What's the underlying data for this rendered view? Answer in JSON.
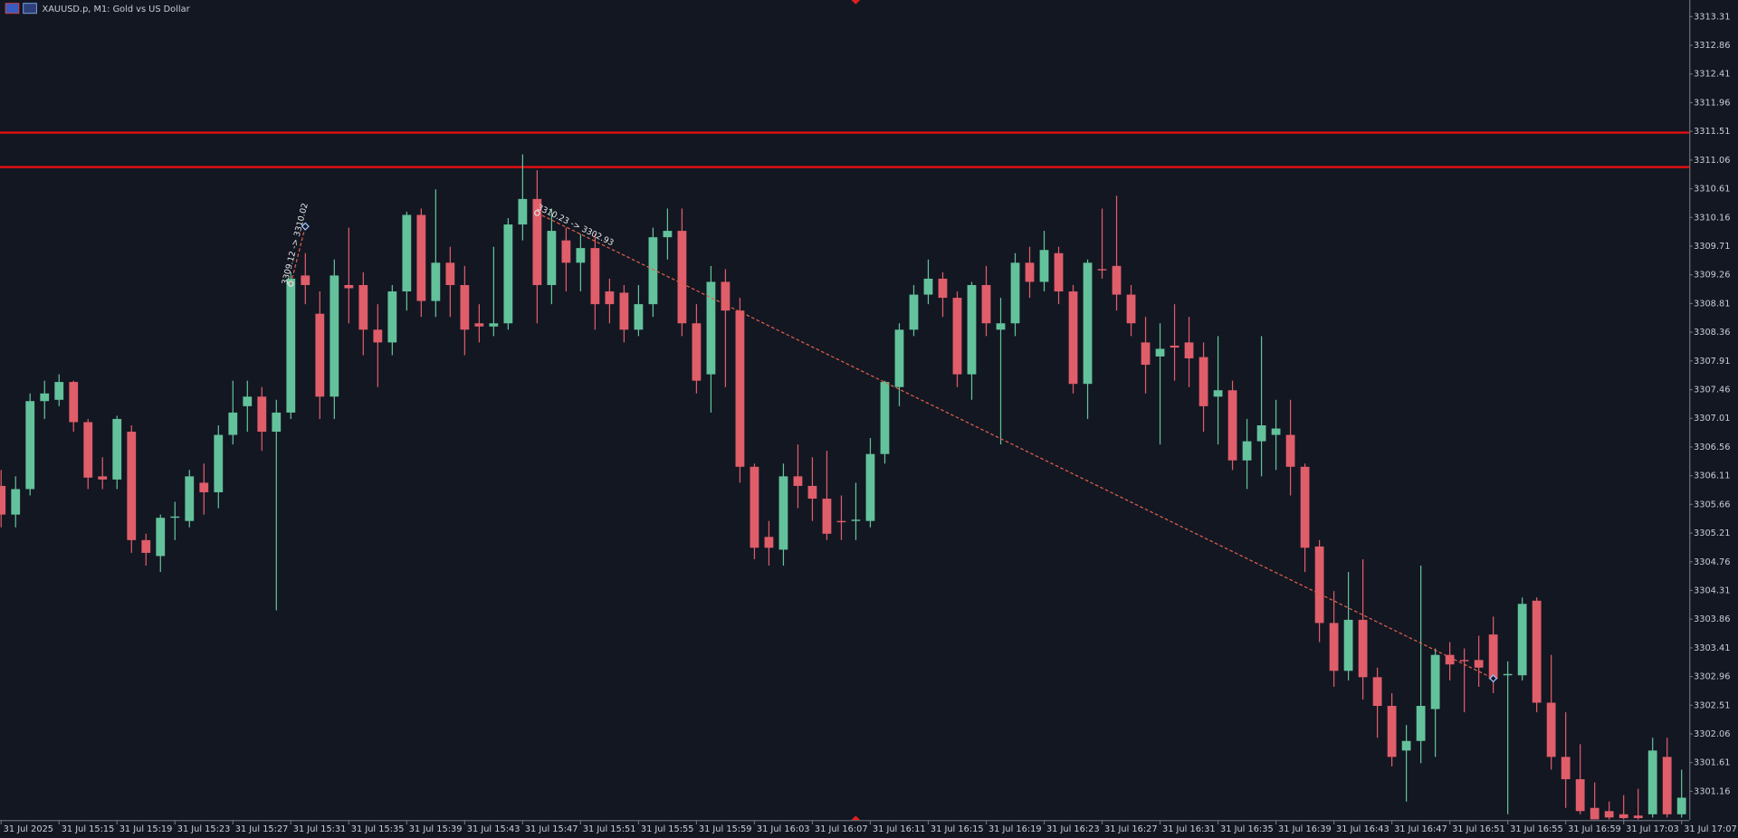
{
  "chart_data": {
    "type": "candlestick",
    "title": "XAUUSD.p, M1:  Gold vs US Dollar",
    "up_color": "#63c29b",
    "down_color": "#e05d6a",
    "level_color": "#e01010",
    "trade_color": "#e0604a",
    "ylim": [
      3300.71,
      3313.57
    ],
    "yticks": [
      3313.31,
      3312.86,
      3312.41,
      3311.96,
      3311.51,
      3311.06,
      3310.61,
      3310.16,
      3309.71,
      3309.26,
      3308.81,
      3308.36,
      3307.91,
      3307.46,
      3307.01,
      3306.56,
      3306.11,
      3305.66,
      3305.21,
      3304.76,
      3304.31,
      3303.86,
      3303.41,
      3302.96,
      3302.51,
      3302.06,
      3301.61,
      3301.16
    ],
    "categories": [
      "31 Jul 2025",
      null,
      null,
      null,
      "31 Jul 15:15",
      null,
      null,
      null,
      "31 Jul 15:19",
      null,
      null,
      null,
      "31 Jul 15:23",
      null,
      null,
      null,
      "31 Jul 15:27",
      null,
      null,
      null,
      "31 Jul 15:31",
      null,
      null,
      null,
      "31 Jul 15:35",
      null,
      null,
      null,
      "31 Jul 15:39",
      null,
      null,
      null,
      "31 Jul 15:43",
      null,
      null,
      null,
      "31 Jul 15:47",
      null,
      null,
      null,
      "31 Jul 15:51",
      null,
      null,
      null,
      "31 Jul 15:55",
      null,
      null,
      null,
      "31 Jul 15:59",
      null,
      null,
      null,
      "31 Jul 16:03",
      null,
      null,
      null,
      "31 Jul 16:07",
      null,
      null,
      null,
      "31 Jul 16:11",
      null,
      null,
      null,
      "31 Jul 16:15",
      null,
      null,
      null,
      "31 Jul 16:19",
      null,
      null,
      null,
      "31 Jul 16:23",
      null,
      null,
      null,
      "31 Jul 16:27",
      null,
      null,
      null,
      "31 Jul 16:31",
      null,
      null,
      null,
      "31 Jul 16:35",
      null,
      null,
      null,
      "31 Jul 16:39",
      null,
      null,
      null,
      "31 Jul 16:43",
      null,
      null,
      null,
      "31 Jul 16:47",
      null,
      null,
      null,
      "31 Jul 16:51",
      null,
      null,
      null,
      "31 Jul 16:55",
      null,
      null,
      null,
      "31 Jul 16:59",
      null,
      null,
      null,
      "31 Jul 17:03",
      null,
      null,
      null,
      "31 Jul 17:07"
    ],
    "open": [
      3305.95,
      3305.5,
      3305.9,
      3307.28,
      3307.3,
      3307.58,
      3306.95,
      3306.1,
      3306.05,
      3306.8,
      3305.1,
      3304.85,
      3305.45,
      3305.4,
      3306.0,
      3305.85,
      3306.75,
      3307.2,
      3307.35,
      3306.8,
      3307.1,
      3309.25,
      3308.65,
      3307.35,
      3309.1,
      3309.1,
      3308.4,
      3308.2,
      3309.0,
      3310.2,
      3308.85,
      3309.45,
      3309.1,
      3308.5,
      3308.45,
      3308.5,
      3310.05,
      3310.45,
      3309.1,
      3309.8,
      3309.45,
      3309.68,
      3309.0,
      3308.98,
      3308.4,
      3308.8,
      3309.85,
      3309.95,
      3308.5,
      3307.7,
      3309.15,
      3308.7,
      3306.25,
      3305.15,
      3304.95,
      3306.1,
      3305.95,
      3305.75,
      3305.4,
      3305.4,
      3305.4,
      3306.45,
      3307.5,
      3308.4,
      3308.95,
      3309.2,
      3308.9,
      3307.7,
      3309.1,
      3308.4,
      3308.5,
      3309.45,
      3309.15,
      3309.6,
      3309.0,
      3307.55,
      3309.35,
      3309.4,
      3308.95,
      3308.2,
      3307.98,
      3308.15,
      3308.2,
      3307.97,
      3307.35,
      3307.45,
      3306.35,
      3306.65,
      3306.75,
      3306.75,
      3306.25,
      3305.0,
      3303.8,
      3303.05,
      3303.85,
      3302.95,
      3302.5,
      3301.8,
      3301.95,
      3302.45,
      3303.3,
      3303.22,
      3303.22,
      3303.62,
      3302.98,
      3302.98,
      3304.15,
      3302.55,
      3301.7,
      3301.35,
      3300.9,
      3300.85,
      3300.8,
      3300.78,
      3300.8,
      3301.7,
      3300.8
    ],
    "high": [
      3306.2,
      3306.1,
      3307.4,
      3307.6,
      3307.7,
      3307.6,
      3307.0,
      3306.4,
      3307.05,
      3306.9,
      3305.2,
      3305.5,
      3305.7,
      3306.2,
      3306.3,
      3306.9,
      3307.6,
      3307.6,
      3307.5,
      3307.3,
      3309.3,
      3309.6,
      3309.0,
      3309.5,
      3310.0,
      3309.3,
      3308.8,
      3309.1,
      3310.25,
      3310.3,
      3310.6,
      3309.7,
      3309.4,
      3308.8,
      3309.7,
      3310.15,
      3311.15,
      3310.9,
      3310.3,
      3310.0,
      3309.9,
      3309.9,
      3309.2,
      3309.1,
      3309.1,
      3310.0,
      3310.3,
      3310.3,
      3308.8,
      3309.4,
      3309.35,
      3308.9,
      3306.3,
      3305.4,
      3306.3,
      3306.6,
      3306.4,
      3306.5,
      3305.8,
      3306.0,
      3306.7,
      3307.6,
      3308.5,
      3309.1,
      3309.5,
      3309.3,
      3309.0,
      3309.15,
      3309.4,
      3308.9,
      3309.6,
      3309.7,
      3309.95,
      3309.7,
      3309.1,
      3309.5,
      3310.3,
      3310.5,
      3309.1,
      3308.6,
      3308.5,
      3308.8,
      3308.6,
      3308.2,
      3308.3,
      3307.6,
      3307.0,
      3308.3,
      3307.3,
      3307.3,
      3306.3,
      3305.1,
      3304.3,
      3304.6,
      3304.8,
      3303.1,
      3302.7,
      3302.2,
      3304.7,
      3303.4,
      3303.5,
      3303.4,
      3303.6,
      3303.9,
      3303.2,
      3304.2,
      3304.2,
      3303.3,
      3302.4,
      3301.9,
      3301.3,
      3301.0,
      3301.1,
      3301.2,
      3302.0,
      3302.0,
      3301.5
    ],
    "low": [
      3305.3,
      3305.3,
      3305.8,
      3307.0,
      3307.2,
      3306.8,
      3305.9,
      3305.9,
      3305.9,
      3304.9,
      3304.7,
      3304.6,
      3305.1,
      3305.3,
      3305.5,
      3305.6,
      3306.6,
      3306.8,
      3306.5,
      3304.0,
      3307.0,
      3308.8,
      3307.0,
      3307.0,
      3308.5,
      3308.0,
      3307.5,
      3308.0,
      3308.7,
      3308.6,
      3308.6,
      3308.6,
      3308.0,
      3308.2,
      3308.3,
      3308.4,
      3309.8,
      3308.5,
      3308.8,
      3309.0,
      3309.0,
      3308.4,
      3308.5,
      3308.2,
      3308.3,
      3308.6,
      3309.5,
      3308.3,
      3307.4,
      3307.1,
      3307.5,
      3306.0,
      3304.8,
      3304.7,
      3304.7,
      3305.6,
      3305.4,
      3305.1,
      3305.1,
      3305.1,
      3305.3,
      3306.3,
      3307.2,
      3308.3,
      3308.8,
      3308.6,
      3307.5,
      3307.3,
      3308.3,
      3306.6,
      3308.3,
      3308.9,
      3309.0,
      3308.8,
      3307.4,
      3307.0,
      3309.2,
      3308.7,
      3308.3,
      3307.4,
      3306.6,
      3307.6,
      3307.5,
      3306.8,
      3306.6,
      3306.2,
      3305.9,
      3306.1,
      3306.2,
      3305.8,
      3304.6,
      3303.5,
      3302.8,
      3302.9,
      3302.6,
      3302.0,
      3301.55,
      3301.0,
      3301.6,
      3301.7,
      3302.9,
      3302.4,
      3302.8,
      3302.7,
      3300.8,
      3302.9,
      3302.4,
      3301.5,
      3300.9,
      3300.8,
      3300.72,
      3300.72,
      3300.72,
      3300.72,
      3300.75,
      3300.75,
      3300.75
    ],
    "close": [
      3305.5,
      3305.9,
      3307.28,
      3307.4,
      3307.58,
      3306.95,
      3306.08,
      3306.05,
      3307.0,
      3305.1,
      3304.9,
      3305.45,
      3305.47,
      3306.1,
      3305.85,
      3306.75,
      3307.1,
      3307.35,
      3306.8,
      3307.1,
      3309.2,
      3309.1,
      3307.35,
      3309.25,
      3309.05,
      3308.4,
      3308.2,
      3309.0,
      3310.2,
      3308.85,
      3309.45,
      3309.1,
      3308.4,
      3308.45,
      3308.5,
      3310.05,
      3310.45,
      3309.1,
      3309.95,
      3309.45,
      3309.68,
      3308.8,
      3308.8,
      3308.4,
      3308.8,
      3309.85,
      3309.95,
      3308.5,
      3307.6,
      3309.15,
      3308.7,
      3306.25,
      3304.98,
      3304.98,
      3306.1,
      3305.95,
      3305.75,
      3305.2,
      3305.38,
      3305.42,
      3306.45,
      3307.58,
      3308.4,
      3308.95,
      3309.2,
      3308.9,
      3307.7,
      3309.1,
      3308.5,
      3308.5,
      3309.45,
      3309.15,
      3309.65,
      3309.0,
      3307.55,
      3309.45,
      3309.33,
      3308.95,
      3308.5,
      3307.85,
      3308.1,
      3308.12,
      3307.95,
      3307.2,
      3307.45,
      3306.35,
      3306.65,
      3306.9,
      3306.85,
      3306.25,
      3304.98,
      3303.8,
      3303.05,
      3303.85,
      3302.95,
      3302.5,
      3301.7,
      3301.95,
      3302.5,
      3303.3,
      3303.15,
      3303.2,
      3303.1,
      3302.92,
      3303.0,
      3304.1,
      3302.55,
      3301.7,
      3301.35,
      3300.85,
      3300.72,
      3300.75,
      3300.74,
      3300.74,
      3301.8,
      3300.8,
      3301.06
    ],
    "levels": [
      3311.49,
      3310.95
    ],
    "trades": [
      {
        "label": "3309.12 -> 3310.02",
        "start": 20,
        "end": 21,
        "open": 3309.12,
        "close": 3310.02
      },
      {
        "label": "3310.23 -> 3302.93",
        "start": 37,
        "end": 103,
        "open": 3310.23,
        "close": 3302.93
      }
    ]
  }
}
